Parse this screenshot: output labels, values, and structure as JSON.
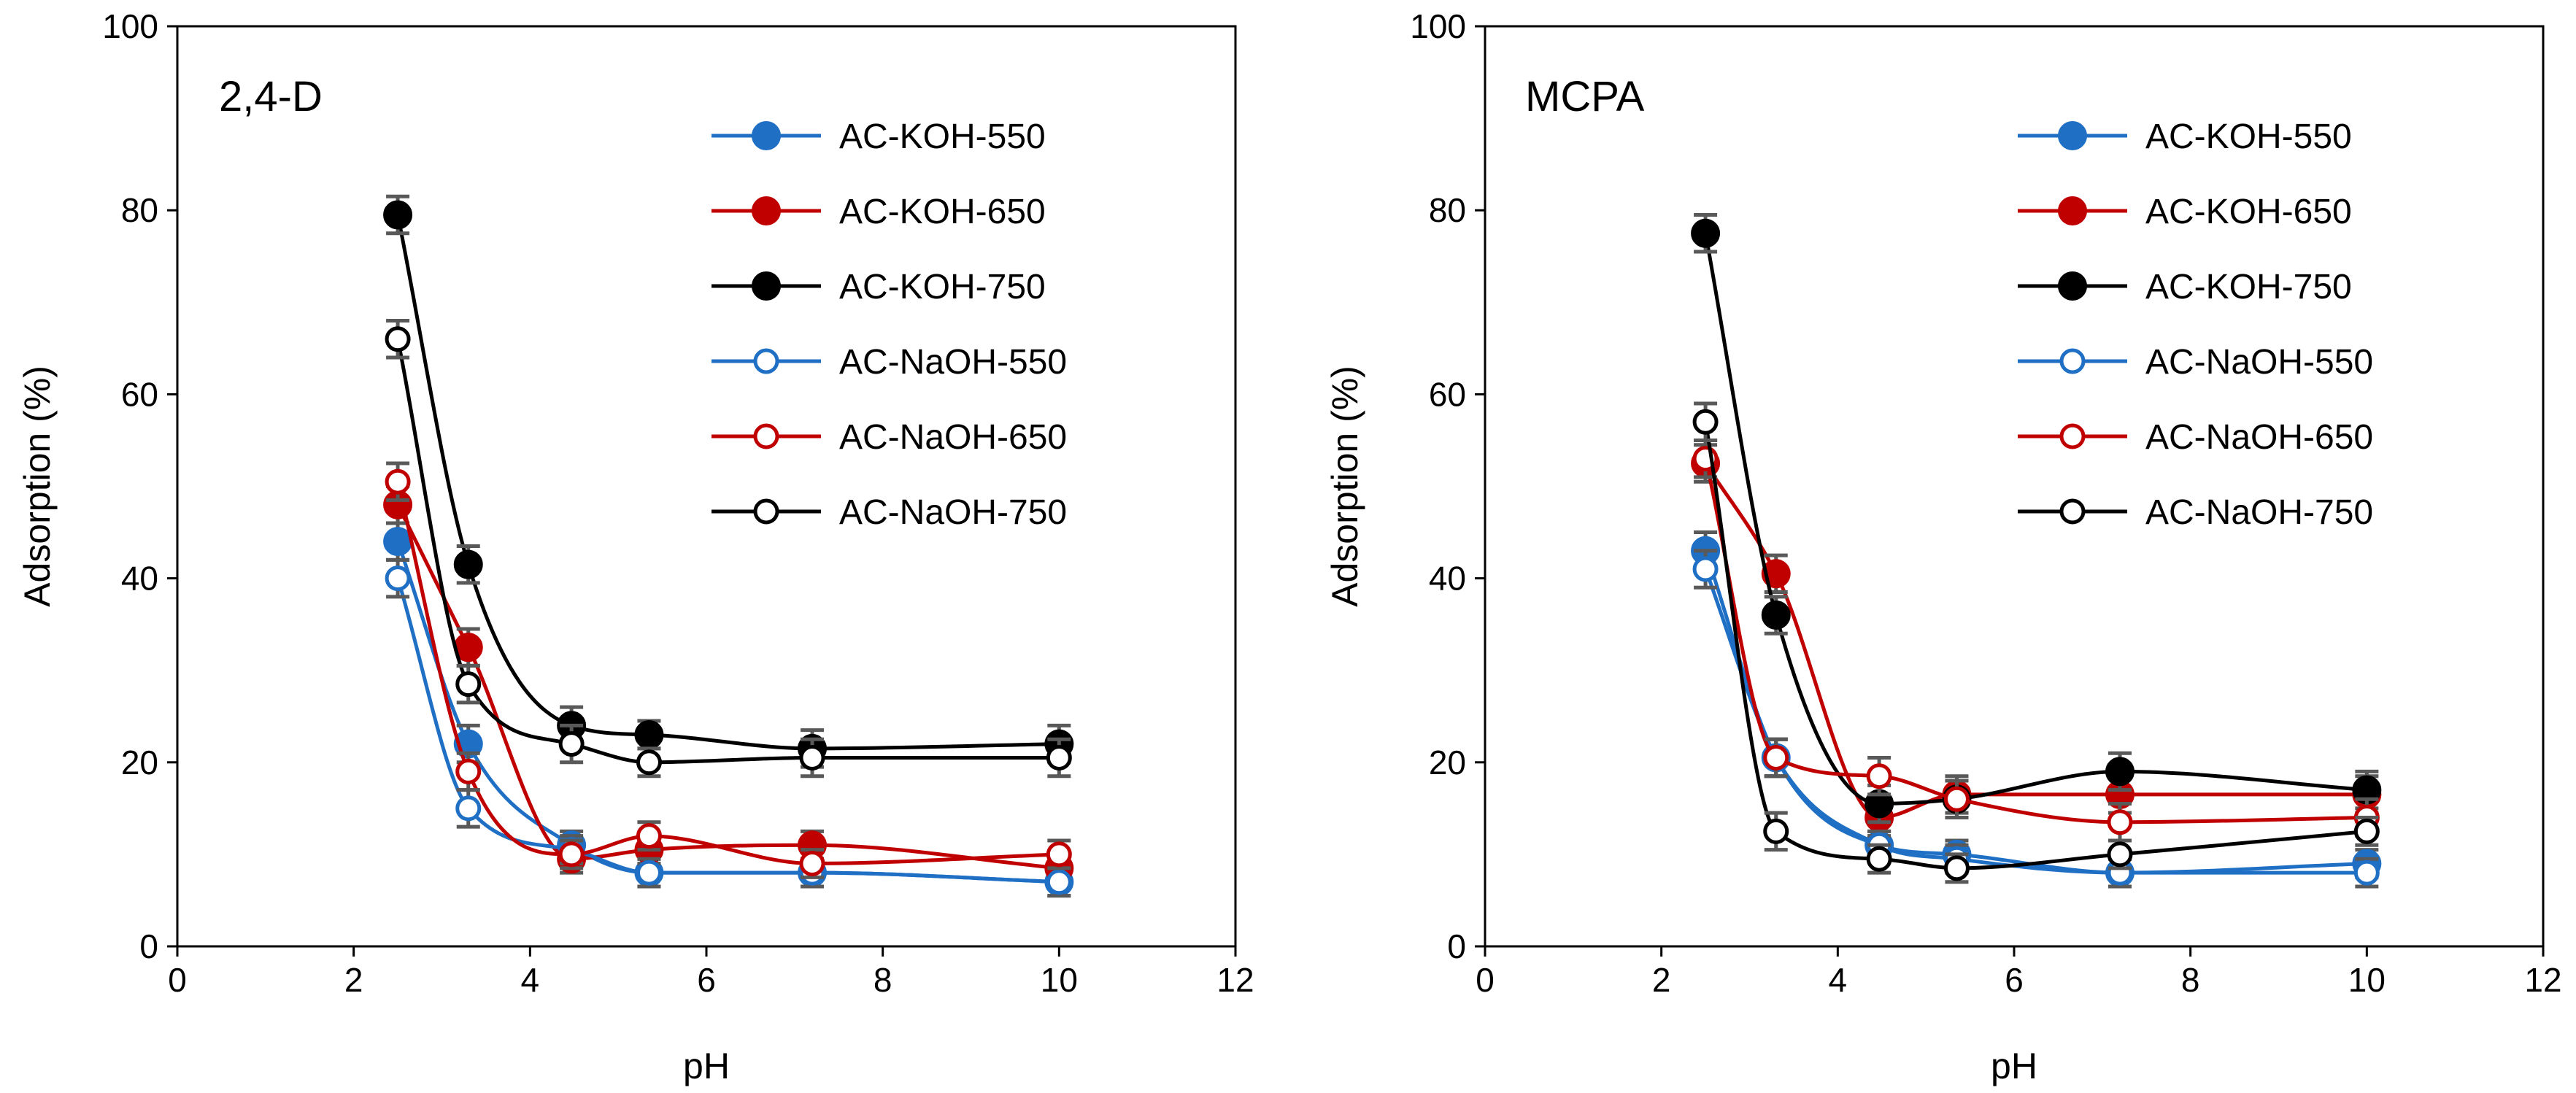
{
  "chart_data": [
    {
      "type": "line",
      "title": "2,4-D",
      "xlabel": "pH",
      "ylabel": "Adsorption (%)",
      "xlim": [
        0,
        12
      ],
      "ylim": [
        0,
        100
      ],
      "xticks": [
        0,
        2,
        4,
        6,
        8,
        10,
        12
      ],
      "yticks": [
        0,
        20,
        40,
        60,
        80,
        100
      ],
      "grid": false,
      "legend_position": "top-right",
      "x": [
        2.5,
        3.3,
        4.47,
        5.35,
        7.2,
        10.0
      ],
      "series": [
        {
          "name": "AC-KOH-550",
          "color": "#1f6fc5",
          "marker": "filled",
          "values": [
            44,
            22,
            11,
            8,
            8,
            7
          ],
          "errors": [
            2,
            2,
            1.5,
            1.5,
            1.5,
            1.5
          ]
        },
        {
          "name": "AC-KOH-650",
          "color": "#c00000",
          "marker": "filled",
          "values": [
            48,
            32.5,
            9.5,
            10.5,
            11,
            8.5
          ],
          "errors": [
            2,
            2,
            1.5,
            1.5,
            1.5,
            1.5
          ]
        },
        {
          "name": "AC-KOH-750",
          "color": "#000000",
          "marker": "filled",
          "values": [
            79.5,
            41.5,
            24,
            23,
            21.5,
            22
          ],
          "errors": [
            2,
            2,
            2,
            1.5,
            2,
            2
          ]
        },
        {
          "name": "AC-NaOH-550",
          "color": "#1f6fc5",
          "marker": "open",
          "values": [
            40,
            15,
            10.5,
            8,
            8,
            7
          ],
          "errors": [
            2,
            2,
            1.5,
            1.5,
            1.5,
            1.5
          ]
        },
        {
          "name": "AC-NaOH-650",
          "color": "#c00000",
          "marker": "open",
          "values": [
            50.5,
            19,
            10,
            12,
            9,
            10
          ],
          "errors": [
            2,
            2,
            1.5,
            1.5,
            1.5,
            1.5
          ]
        },
        {
          "name": "AC-NaOH-750",
          "color": "#000000",
          "marker": "open",
          "values": [
            66,
            28.5,
            22,
            20,
            20.5,
            20.5
          ],
          "errors": [
            2,
            2,
            2,
            1.5,
            2,
            2
          ]
        }
      ]
    },
    {
      "type": "line",
      "title": "MCPA",
      "xlabel": "pH",
      "ylabel": "Adsorption (%)",
      "xlim": [
        0,
        12
      ],
      "ylim": [
        0,
        100
      ],
      "xticks": [
        0,
        2,
        4,
        6,
        8,
        10,
        12
      ],
      "yticks": [
        0,
        20,
        40,
        60,
        80,
        100
      ],
      "grid": false,
      "legend_position": "top-right",
      "x": [
        2.5,
        3.3,
        4.47,
        5.35,
        7.2,
        10.0
      ],
      "series": [
        {
          "name": "AC-KOH-550",
          "color": "#1f6fc5",
          "marker": "filled",
          "values": [
            43,
            20.5,
            11,
            10,
            8,
            9
          ],
          "errors": [
            2,
            2,
            1.5,
            1.5,
            1.5,
            1.5
          ]
        },
        {
          "name": "AC-KOH-650",
          "color": "#c00000",
          "marker": "filled",
          "values": [
            52.5,
            40.5,
            14,
            16.5,
            16.5,
            16.5
          ],
          "errors": [
            2,
            2,
            2,
            2,
            2,
            2
          ]
        },
        {
          "name": "AC-KOH-750",
          "color": "#000000",
          "marker": "filled",
          "values": [
            77.5,
            36,
            15.5,
            16,
            19,
            17
          ],
          "errors": [
            2,
            2,
            2,
            2,
            2,
            2
          ]
        },
        {
          "name": "AC-NaOH-550",
          "color": "#1f6fc5",
          "marker": "open",
          "values": [
            41,
            20.5,
            11,
            9.5,
            8,
            8
          ],
          "errors": [
            2,
            2,
            1.5,
            1.5,
            1.5,
            1.5
          ]
        },
        {
          "name": "AC-NaOH-650",
          "color": "#c00000",
          "marker": "open",
          "values": [
            53,
            20.5,
            18.5,
            16,
            13.5,
            14
          ],
          "errors": [
            2,
            2,
            2,
            2,
            2,
            2
          ]
        },
        {
          "name": "AC-NaOH-750",
          "color": "#000000",
          "marker": "open",
          "values": [
            57,
            12.5,
            9.5,
            8.5,
            10,
            12.5
          ],
          "errors": [
            2,
            2,
            1.5,
            1.5,
            1.5,
            1.5
          ]
        }
      ]
    }
  ]
}
